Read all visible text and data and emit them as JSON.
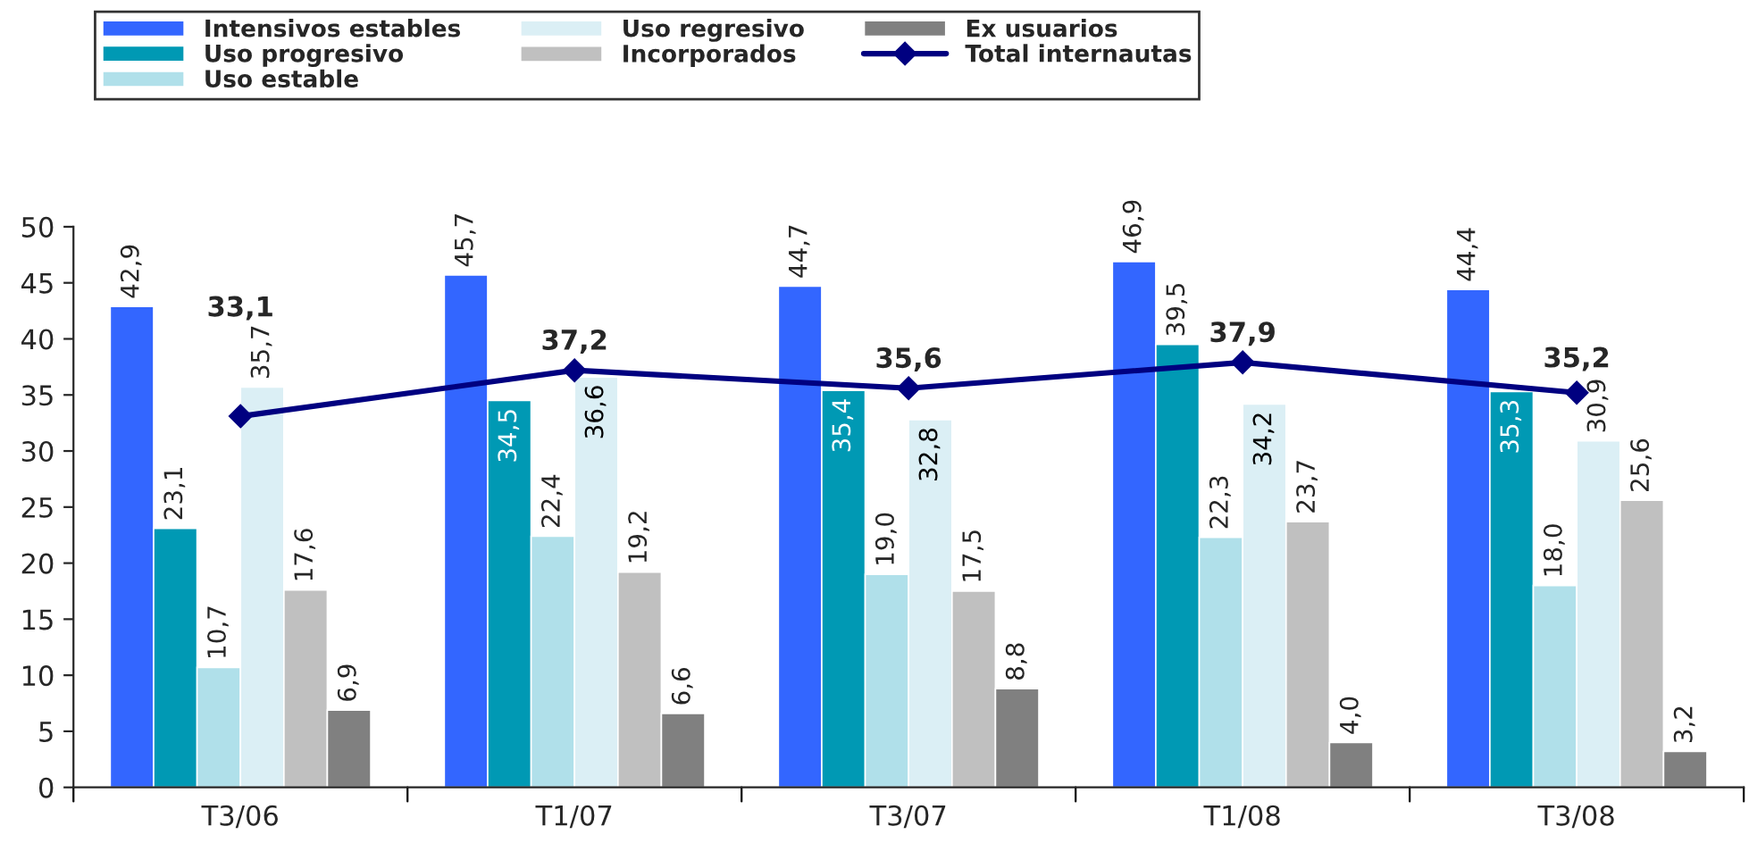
{
  "chart_data": {
    "type": "bar",
    "categories": [
      "T3/06",
      "T1/07",
      "T3/07",
      "T1/08",
      "T3/08"
    ],
    "series": [
      {
        "name": "Intensivos estables",
        "color": "#3366ff",
        "values": [
          42.9,
          45.7,
          44.7,
          46.9,
          44.4
        ],
        "value_labels": [
          "42,9",
          "45,7",
          "44,7",
          "46,9",
          "44,4"
        ]
      },
      {
        "name": "Uso progresivo",
        "color": "#0099b4",
        "values": [
          23.1,
          34.5,
          35.4,
          39.5,
          35.3
        ],
        "value_labels": [
          "23,1",
          "34,5",
          "35,4",
          "39,5",
          "35,3"
        ]
      },
      {
        "name": "Uso estable",
        "color": "#b0e0ea",
        "values": [
          10.7,
          22.4,
          19.0,
          22.3,
          18.0
        ],
        "value_labels": [
          "10,7",
          "22,4",
          "19,0",
          "22,3",
          "18,0"
        ]
      },
      {
        "name": "Uso regresivo",
        "color": "#dbeff5",
        "values": [
          35.7,
          36.6,
          32.8,
          34.2,
          30.9
        ],
        "value_labels": [
          "35,7",
          "36,6",
          "32,8",
          "34,2",
          "30,9"
        ]
      },
      {
        "name": "Incorporados",
        "color": "#c0c0c0",
        "values": [
          17.6,
          19.2,
          17.5,
          23.7,
          25.6
        ],
        "value_labels": [
          "17,6",
          "19,2",
          "17,5",
          "23,7",
          "25,6"
        ]
      },
      {
        "name": "Ex usuarios",
        "color": "#808080",
        "values": [
          6.9,
          6.6,
          8.8,
          4.0,
          3.2
        ],
        "value_labels": [
          "6,9",
          "6,6",
          "8,8",
          "4,0",
          "3,2"
        ]
      },
      {
        "name": "Total internautas",
        "type": "line",
        "color": "#000080",
        "marker": "diamond",
        "values": [
          33.1,
          37.2,
          35.6,
          37.9,
          35.2
        ],
        "value_labels": [
          "33,1",
          "37,2",
          "35,6",
          "37,9",
          "35,2"
        ]
      }
    ],
    "ylim": [
      0,
      50
    ],
    "yticks": [
      0,
      5,
      10,
      15,
      20,
      25,
      30,
      35,
      40,
      45,
      50
    ],
    "grid": false,
    "legend": "top"
  }
}
